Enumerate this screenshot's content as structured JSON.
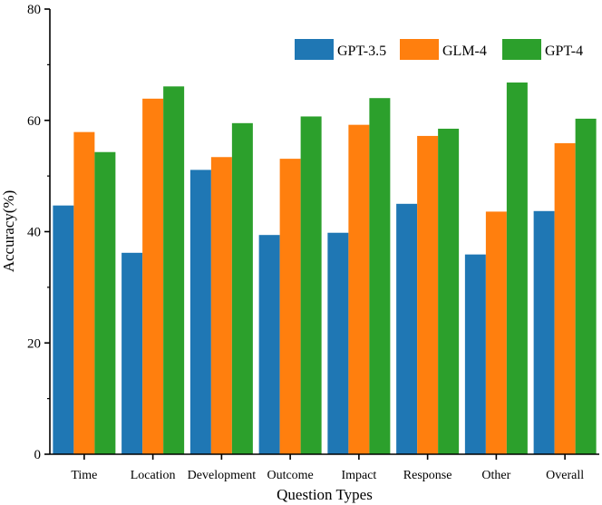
{
  "chart_data": {
    "type": "bar",
    "title": "",
    "xlabel": "Question Types",
    "ylabel": "Accuracy(%)",
    "ylim": [
      0,
      80
    ],
    "yticks": [
      0,
      20,
      40,
      60,
      80
    ],
    "grid": false,
    "legend_position": "top-right",
    "categories": [
      "Time",
      "Location",
      "Development",
      "Outcome",
      "Impact",
      "Response",
      "Other",
      "Overall"
    ],
    "series": [
      {
        "name": "GPT-3.5",
        "color": "#1f77b4",
        "values": [
          44.7,
          36.2,
          51.1,
          39.4,
          39.8,
          45.0,
          35.9,
          43.7
        ]
      },
      {
        "name": "GLM-4",
        "color": "#ff7f0e",
        "values": [
          57.9,
          63.9,
          53.4,
          53.1,
          59.2,
          57.2,
          43.6,
          55.9
        ]
      },
      {
        "name": "GPT-4",
        "color": "#2ca02c",
        "values": [
          54.3,
          66.1,
          59.5,
          60.7,
          64.0,
          58.5,
          66.8,
          60.3
        ]
      }
    ]
  }
}
